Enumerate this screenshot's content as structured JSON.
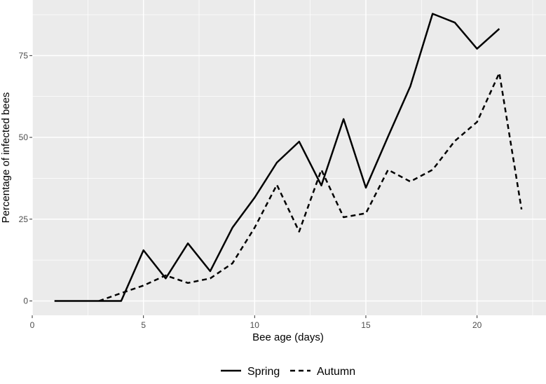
{
  "chart_data": {
    "type": "line",
    "xlabel": "Bee age (days)",
    "ylabel": "Percentage of infected bees",
    "xlim": [
      0,
      23.1
    ],
    "ylim": [
      -4.4,
      92
    ],
    "xticks": [
      0,
      5,
      10,
      15,
      20
    ],
    "yticks": [
      0,
      25,
      50,
      75
    ],
    "grid": true,
    "legend_position": "bottom",
    "colors": {
      "panel": "#ebebeb",
      "grid": "#ffffff",
      "line": "#000000",
      "tick_text": "#4d4d4d"
    },
    "series": [
      {
        "name": "Spring",
        "linestyle": "solid",
        "x": [
          1,
          2,
          3,
          4,
          5,
          6,
          7,
          8,
          9,
          10,
          11,
          12,
          13,
          14,
          15,
          16,
          17,
          18,
          19,
          20,
          21
        ],
        "y": [
          0,
          0,
          0,
          0,
          15.5,
          6.9,
          17.6,
          9.1,
          22.4,
          31.6,
          42.3,
          48.7,
          35.3,
          55.6,
          34.6,
          50.3,
          65.6,
          87.8,
          85.1,
          77.1,
          83.2
        ]
      },
      {
        "name": "Autumn",
        "linestyle": "dashed",
        "x": [
          3,
          4,
          5,
          6,
          7,
          8,
          9,
          10,
          11,
          12,
          13,
          14,
          15,
          16,
          17,
          18,
          19,
          20,
          21,
          22
        ],
        "y": [
          0,
          2.4,
          4.7,
          7.8,
          5.5,
          6.9,
          11.5,
          22.4,
          35.5,
          21.2,
          40.1,
          25.6,
          26.8,
          40.1,
          36.5,
          40.1,
          48.9,
          54.7,
          69.7,
          28.0
        ]
      }
    ]
  }
}
